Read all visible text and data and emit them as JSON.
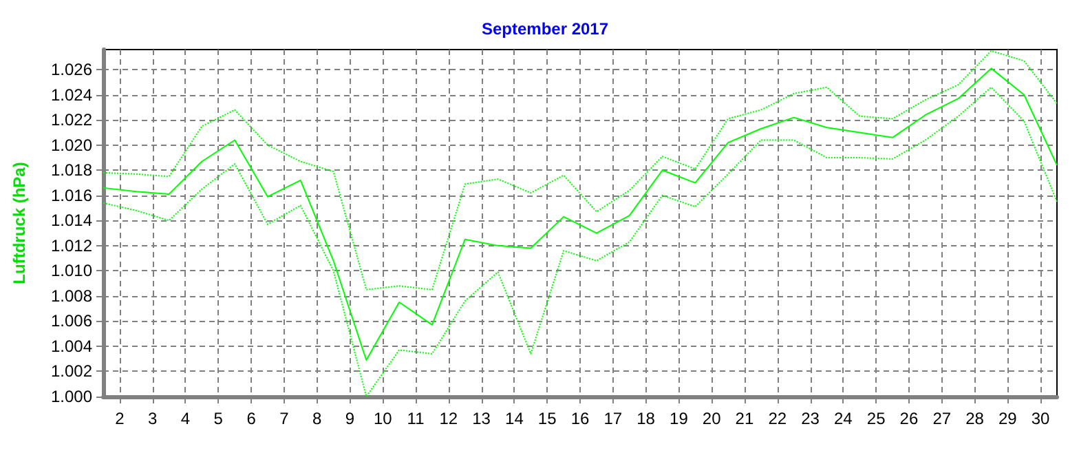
{
  "chart_data": {
    "type": "line",
    "title": "September 2017",
    "ylabel": "Luftdruck (hPa)",
    "x": [
      1.5,
      2.5,
      3.5,
      4.5,
      5.5,
      6.5,
      7.5,
      8.5,
      9.5,
      10.5,
      11.5,
      12.5,
      13.5,
      14.5,
      15.5,
      16.5,
      17.5,
      18.5,
      19.5,
      20.5,
      21.5,
      22.5,
      23.5,
      24.5,
      25.5,
      26.5,
      27.5,
      28.5,
      29.5,
      30.5
    ],
    "series": [
      {
        "color": "#00ff00",
        "line_style": "dotted",
        "values": [
          1.0178,
          1.0177,
          1.0175,
          1.0215,
          1.0228,
          1.02,
          1.0187,
          1.0179,
          1.0085,
          1.0088,
          1.0085,
          1.0169,
          1.0173,
          1.0162,
          1.0176,
          1.0147,
          1.0164,
          1.0191,
          1.0181,
          1.0221,
          1.0228,
          1.0241,
          1.0246,
          1.0223,
          1.0221,
          1.0236,
          1.0248,
          1.0275,
          1.0267,
          1.0233
        ]
      },
      {
        "color": "#00ff00",
        "line_style": "solid",
        "values": [
          1.0166,
          1.0163,
          1.0161,
          1.0187,
          1.0204,
          1.0159,
          1.0172,
          1.0108,
          1.0029,
          1.0075,
          1.0057,
          1.0125,
          1.012,
          1.0118,
          1.0143,
          1.013,
          1.0144,
          1.018,
          1.017,
          1.0202,
          1.0213,
          1.0222,
          1.0214,
          1.021,
          1.0206,
          1.0224,
          1.0237,
          1.0261,
          1.024,
          1.0184
        ]
      },
      {
        "color": "#00ff00",
        "line_style": "dotted",
        "values": [
          1.0154,
          1.0148,
          1.014,
          1.0165,
          1.0185,
          1.0137,
          1.0152,
          1.01,
          1.0,
          1.0037,
          1.0034,
          1.0076,
          1.0099,
          1.0034,
          1.0116,
          1.0108,
          1.0123,
          1.016,
          1.0151,
          1.0177,
          1.0204,
          1.0204,
          1.019,
          1.019,
          1.0189,
          1.0204,
          1.0223,
          1.0246,
          1.0219,
          1.0155
        ]
      }
    ],
    "xlim": [
      1.5,
      30.5
    ],
    "xticks": [
      2,
      3,
      4,
      5,
      6,
      7,
      8,
      9,
      10,
      11,
      12,
      13,
      14,
      15,
      16,
      17,
      18,
      19,
      20,
      21,
      22,
      23,
      24,
      25,
      26,
      27,
      28,
      29,
      30
    ],
    "ylim": [
      1.0,
      1.0276
    ],
    "yticks": [
      {
        "value": 1.0,
        "label": "1.000"
      },
      {
        "value": 1.002,
        "label": "1.002"
      },
      {
        "value": 1.004,
        "label": "1.004"
      },
      {
        "value": 1.006,
        "label": "1.006"
      },
      {
        "value": 1.008,
        "label": "1.008"
      },
      {
        "value": 1.01,
        "label": "1.010"
      },
      {
        "value": 1.012,
        "label": "1.012"
      },
      {
        "value": 1.014,
        "label": "1.014"
      },
      {
        "value": 1.016,
        "label": "1.016"
      },
      {
        "value": 1.018,
        "label": "1.018"
      },
      {
        "value": 1.02,
        "label": "1.020"
      },
      {
        "value": 1.022,
        "label": "1.022"
      },
      {
        "value": 1.024,
        "label": "1.024"
      },
      {
        "value": 1.026,
        "label": "1.026"
      }
    ],
    "grid": true,
    "marker": "none"
  }
}
